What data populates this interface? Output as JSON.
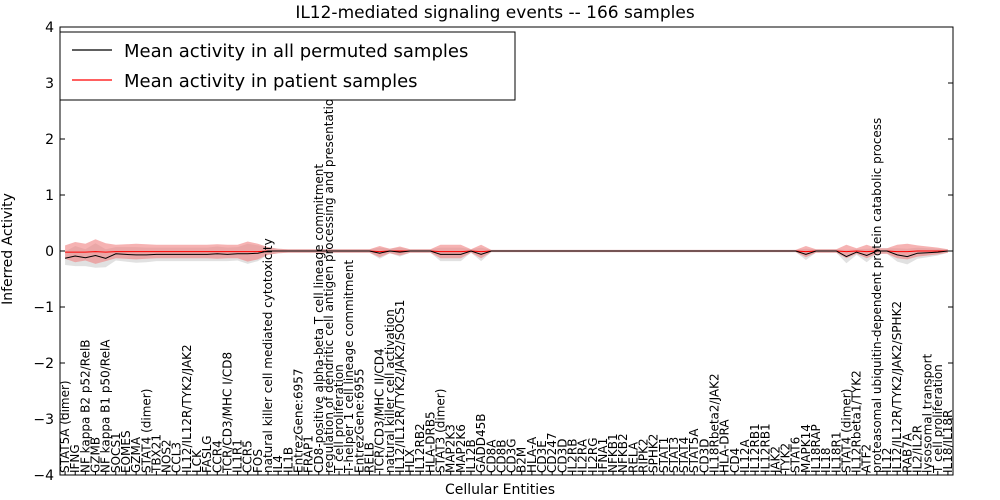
{
  "chart_data": {
    "type": "line",
    "title": "IL12-mediated signaling events -- 166 samples",
    "xlabel": "Cellular Entities",
    "ylabel": "Inferred Activity",
    "ylim": [
      -4,
      4
    ],
    "yticks": [
      -4,
      -3,
      -2,
      -1,
      0,
      1,
      2,
      3,
      4
    ],
    "ytick_labels": [
      "−4",
      "−3",
      "−2",
      "−1",
      "0",
      "1",
      "2",
      "3",
      "4"
    ],
    "legend": {
      "placement": "top-left",
      "entries": [
        {
          "label": "Mean activity in all permuted samples",
          "color": "#000000"
        },
        {
          "label": "Mean activity in patient samples",
          "color": "#ff0000"
        }
      ]
    },
    "colors": {
      "permuted_line": "#000000",
      "patient_line": "#ff0000",
      "permuted_band": "#c8c8c8",
      "patient_band": "#f08080"
    },
    "categories": [
      "STAT5A (dimer)",
      "IFNG",
      "NF kappa B2 p52/RelB",
      "GZMB",
      "NF kappa B1 p50/RelA",
      "SOCS1",
      "EOMES",
      "GZMA",
      "STAT4 (dimer)",
      "TBX21",
      "NOS2",
      "CCL3",
      "IL12/IL12R/TYK2/JAK2",
      "LCK",
      "FASLG",
      "CCR4",
      "TCR/CD3/MHC I/CD8",
      "IL1R1",
      "CCR5",
      "FOS",
      "natural killer cell mediated cytotoxicity",
      "IL4",
      "IL1B",
      "EntrezGene:6957",
      "FRAP1",
      "CD8-positive alpha-beta T cell lineage commitment",
      "regulation of dendritic cell antigen processing and presentation",
      "T cell proliferation",
      "T-helper 1 cell lineage commitment",
      "EntrezGene:6955",
      "RELB",
      "TCR/CD3/MHC II/CD4",
      "natural killer cell activation",
      "IL12/IL12R/TYK2/JAK2/SOCS1",
      "HLX",
      "IL12RB2",
      "HLA-DRB5",
      "STAT3 (dimer)",
      "MAP2K3",
      "MAP2K6",
      "IL12B",
      "GADD45B",
      "CD8A",
      "CD8B",
      "CD3G",
      "B2M",
      "HLA-A",
      "CD3E",
      "CD247",
      "CD3D",
      "IL2RB",
      "IL2RA",
      "IL2RG",
      "IFNA1",
      "NFKB1",
      "NFKB2",
      "RELA",
      "RIPK2",
      "SPHK2",
      "STAT1",
      "STAT3",
      "STAT4",
      "STAT5A",
      "CD3D",
      "IL18Rbeta2/JAK2",
      "HLA-DRA",
      "CD4",
      "IL12A",
      "IL12RB1",
      "IL12RB1",
      "JAK2",
      "TYK2",
      "STAT6",
      "MAPK14",
      "IL18RAP",
      "IL18",
      "IL18R1",
      "STAT4 (dimer)",
      "IL12Rbeta1/TYK2",
      "ATF2",
      "proteasomal ubiquitin-dependent protein catabolic process",
      "IL12",
      "IL12/IL12R/TYK2/JAK2/SPHK2",
      "RAB7A",
      "IL2/IL2R",
      "lysosomal transport",
      "T cell proliferation",
      "IL18/IL18R"
    ],
    "permuted_mean": [
      -0.13,
      -0.09,
      -0.12,
      -0.08,
      -0.13,
      -0.05,
      -0.06,
      -0.07,
      -0.07,
      -0.06,
      -0.06,
      -0.06,
      -0.06,
      -0.06,
      -0.06,
      -0.05,
      -0.06,
      -0.05,
      -0.05,
      -0.04,
      0.0,
      0.0,
      0.0,
      0.0,
      0.0,
      0.0,
      0.0,
      0.0,
      0.0,
      0.0,
      0.0,
      -0.04,
      0.0,
      -0.02,
      0.0,
      0.0,
      0.0,
      -0.06,
      -0.06,
      -0.06,
      0.0,
      -0.06,
      0.0,
      0.0,
      0.0,
      0.0,
      0.0,
      0.0,
      0.0,
      0.0,
      0.0,
      0.0,
      0.0,
      0.0,
      0.0,
      0.0,
      0.0,
      0.0,
      0.0,
      0.0,
      0.0,
      0.0,
      0.0,
      0.0,
      0.0,
      0.0,
      0.0,
      0.0,
      0.0,
      0.0,
      0.0,
      0.0,
      0.0,
      -0.06,
      0.0,
      0.0,
      0.0,
      -0.1,
      -0.02,
      -0.08,
      0.0,
      0.0,
      -0.07,
      -0.1,
      -0.04,
      -0.03,
      -0.02,
      0.0
    ],
    "patient_mean": [
      -0.02,
      -0.02,
      -0.02,
      -0.01,
      -0.02,
      -0.01,
      -0.01,
      -0.01,
      -0.01,
      -0.01,
      -0.01,
      -0.01,
      -0.01,
      -0.01,
      -0.01,
      -0.01,
      -0.01,
      -0.01,
      -0.01,
      -0.01,
      0.0,
      0.0,
      0.0,
      0.0,
      0.0,
      0.0,
      0.0,
      0.0,
      0.0,
      0.0,
      0.0,
      -0.01,
      0.0,
      0.0,
      0.0,
      0.0,
      0.0,
      -0.01,
      -0.01,
      -0.01,
      0.0,
      -0.01,
      0.0,
      0.0,
      0.0,
      0.0,
      0.0,
      0.0,
      0.0,
      0.0,
      0.0,
      0.0,
      0.0,
      0.0,
      0.0,
      0.0,
      0.0,
      0.0,
      0.0,
      0.0,
      0.0,
      0.0,
      0.0,
      0.0,
      0.0,
      0.0,
      0.0,
      0.0,
      0.0,
      0.0,
      0.0,
      0.0,
      0.0,
      -0.01,
      0.0,
      0.0,
      0.0,
      -0.01,
      0.0,
      -0.01,
      0.0,
      0.0,
      -0.01,
      -0.01,
      0.0,
      0.0,
      0.0,
      0.0
    ],
    "band_half_width": [
      0.12,
      0.18,
      0.15,
      0.22,
      0.16,
      0.12,
      0.13,
      0.14,
      0.13,
      0.12,
      0.12,
      0.12,
      0.12,
      0.12,
      0.12,
      0.13,
      0.12,
      0.12,
      0.18,
      0.14,
      0.07,
      0.04,
      0.03,
      0.03,
      0.03,
      0.03,
      0.03,
      0.03,
      0.03,
      0.03,
      0.03,
      0.1,
      0.04,
      0.08,
      0.03,
      0.03,
      0.03,
      0.12,
      0.12,
      0.12,
      0.03,
      0.12,
      0.02,
      0.02,
      0.02,
      0.02,
      0.02,
      0.02,
      0.02,
      0.02,
      0.02,
      0.02,
      0.02,
      0.02,
      0.02,
      0.02,
      0.02,
      0.02,
      0.02,
      0.02,
      0.02,
      0.02,
      0.02,
      0.02,
      0.02,
      0.02,
      0.02,
      0.02,
      0.02,
      0.02,
      0.02,
      0.02,
      0.02,
      0.1,
      0.03,
      0.03,
      0.03,
      0.12,
      0.05,
      0.12,
      0.05,
      0.05,
      0.12,
      0.14,
      0.1,
      0.08,
      0.06,
      0.03
    ]
  }
}
